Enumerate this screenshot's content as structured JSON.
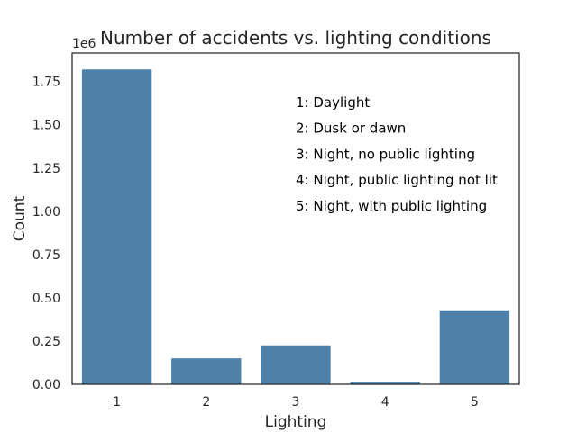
{
  "chart_data": {
    "type": "bar",
    "title": "Number of accidents vs. lighting conditions",
    "xlabel": "Lighting",
    "ylabel": "Count",
    "y_offset_label": "1e6",
    "categories": [
      "1",
      "2",
      "3",
      "4",
      "5"
    ],
    "values": [
      1820000,
      150000,
      225000,
      15000,
      428000
    ],
    "ylim": [
      0,
      1915000
    ],
    "yticks": [
      0,
      250000,
      500000,
      750000,
      1000000,
      1250000,
      1500000,
      1750000
    ],
    "ytick_labels": [
      "0.00",
      "0.25",
      "0.50",
      "0.75",
      "1.00",
      "1.25",
      "1.50",
      "1.75"
    ],
    "bar_color": "#4f81a8",
    "grid": false,
    "annotations": [
      "1: Daylight",
      "2: Dusk or dawn",
      "3: Night, no public lighting",
      "4: Night, public lighting not lit",
      "5: Night, with public lighting"
    ]
  }
}
